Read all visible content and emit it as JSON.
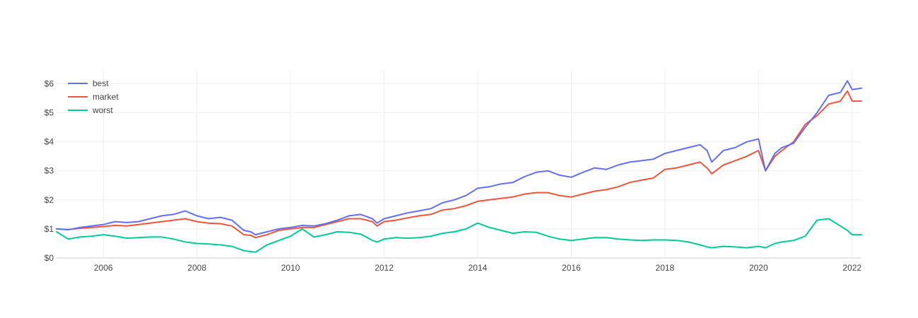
{
  "chart_data": {
    "type": "line",
    "title": "",
    "xlabel": "",
    "ylabel": "",
    "xlim": [
      2005.0,
      2022.2
    ],
    "ylim": [
      0,
      6.45
    ],
    "grid": true,
    "legend_position": "top-left",
    "x_ticks": [
      {
        "value": 2006,
        "label": "2006"
      },
      {
        "value": 2008,
        "label": "2008"
      },
      {
        "value": 2010,
        "label": "2010"
      },
      {
        "value": 2012,
        "label": "2012"
      },
      {
        "value": 2014,
        "label": "2014"
      },
      {
        "value": 2016,
        "label": "2016"
      },
      {
        "value": 2018,
        "label": "2018"
      },
      {
        "value": 2020,
        "label": "2020"
      },
      {
        "value": 2022,
        "label": "2022"
      }
    ],
    "y_ticks": [
      {
        "value": 0,
        "label": "$0"
      },
      {
        "value": 1,
        "label": "$1"
      },
      {
        "value": 2,
        "label": "$2"
      },
      {
        "value": 3,
        "label": "$3"
      },
      {
        "value": 4,
        "label": "$4"
      },
      {
        "value": 5,
        "label": "$5"
      },
      {
        "value": 6,
        "label": "$6"
      }
    ],
    "series": [
      {
        "name": "best",
        "color": "#636efa",
        "points": [
          [
            2005.0,
            1.0
          ],
          [
            2005.25,
            0.97
          ],
          [
            2005.5,
            1.05
          ],
          [
            2005.75,
            1.1
          ],
          [
            2006.0,
            1.15
          ],
          [
            2006.25,
            1.25
          ],
          [
            2006.5,
            1.22
          ],
          [
            2006.75,
            1.25
          ],
          [
            2007.0,
            1.35
          ],
          [
            2007.25,
            1.45
          ],
          [
            2007.5,
            1.5
          ],
          [
            2007.75,
            1.62
          ],
          [
            2008.0,
            1.45
          ],
          [
            2008.25,
            1.35
          ],
          [
            2008.5,
            1.4
          ],
          [
            2008.75,
            1.3
          ],
          [
            2009.0,
            0.95
          ],
          [
            2009.15,
            0.9
          ],
          [
            2009.25,
            0.8
          ],
          [
            2009.5,
            0.9
          ],
          [
            2009.75,
            1.0
          ],
          [
            2010.0,
            1.05
          ],
          [
            2010.25,
            1.12
          ],
          [
            2010.5,
            1.1
          ],
          [
            2010.75,
            1.18
          ],
          [
            2011.0,
            1.3
          ],
          [
            2011.25,
            1.45
          ],
          [
            2011.5,
            1.5
          ],
          [
            2011.75,
            1.35
          ],
          [
            2011.85,
            1.2
          ],
          [
            2012.0,
            1.35
          ],
          [
            2012.25,
            1.45
          ],
          [
            2012.5,
            1.55
          ],
          [
            2012.75,
            1.62
          ],
          [
            2013.0,
            1.7
          ],
          [
            2013.25,
            1.9
          ],
          [
            2013.5,
            2.0
          ],
          [
            2013.75,
            2.15
          ],
          [
            2014.0,
            2.4
          ],
          [
            2014.25,
            2.45
          ],
          [
            2014.5,
            2.55
          ],
          [
            2014.75,
            2.6
          ],
          [
            2015.0,
            2.8
          ],
          [
            2015.25,
            2.95
          ],
          [
            2015.5,
            3.0
          ],
          [
            2015.75,
            2.85
          ],
          [
            2016.0,
            2.78
          ],
          [
            2016.25,
            2.95
          ],
          [
            2016.5,
            3.1
          ],
          [
            2016.75,
            3.05
          ],
          [
            2017.0,
            3.2
          ],
          [
            2017.25,
            3.3
          ],
          [
            2017.5,
            3.35
          ],
          [
            2017.75,
            3.4
          ],
          [
            2018.0,
            3.6
          ],
          [
            2018.25,
            3.7
          ],
          [
            2018.5,
            3.8
          ],
          [
            2018.75,
            3.9
          ],
          [
            2018.9,
            3.7
          ],
          [
            2019.0,
            3.3
          ],
          [
            2019.25,
            3.7
          ],
          [
            2019.5,
            3.8
          ],
          [
            2019.75,
            4.0
          ],
          [
            2020.0,
            4.1
          ],
          [
            2020.15,
            3.0
          ],
          [
            2020.35,
            3.6
          ],
          [
            2020.5,
            3.8
          ],
          [
            2020.75,
            3.95
          ],
          [
            2021.0,
            4.5
          ],
          [
            2021.25,
            5.0
          ],
          [
            2021.5,
            5.6
          ],
          [
            2021.75,
            5.7
          ],
          [
            2021.9,
            6.1
          ],
          [
            2022.0,
            5.8
          ],
          [
            2022.2,
            5.85
          ]
        ]
      },
      {
        "name": "market",
        "color": "#ef553b",
        "points": [
          [
            2005.0,
            1.0
          ],
          [
            2005.25,
            0.98
          ],
          [
            2005.5,
            1.02
          ],
          [
            2005.75,
            1.05
          ],
          [
            2006.0,
            1.08
          ],
          [
            2006.25,
            1.12
          ],
          [
            2006.5,
            1.1
          ],
          [
            2006.75,
            1.15
          ],
          [
            2007.0,
            1.2
          ],
          [
            2007.25,
            1.25
          ],
          [
            2007.5,
            1.3
          ],
          [
            2007.75,
            1.35
          ],
          [
            2008.0,
            1.25
          ],
          [
            2008.25,
            1.2
          ],
          [
            2008.5,
            1.18
          ],
          [
            2008.75,
            1.1
          ],
          [
            2009.0,
            0.8
          ],
          [
            2009.15,
            0.78
          ],
          [
            2009.25,
            0.7
          ],
          [
            2009.5,
            0.8
          ],
          [
            2009.75,
            0.95
          ],
          [
            2010.0,
            1.0
          ],
          [
            2010.25,
            1.05
          ],
          [
            2010.5,
            1.05
          ],
          [
            2010.75,
            1.15
          ],
          [
            2011.0,
            1.25
          ],
          [
            2011.25,
            1.35
          ],
          [
            2011.5,
            1.35
          ],
          [
            2011.75,
            1.25
          ],
          [
            2011.85,
            1.1
          ],
          [
            2012.0,
            1.25
          ],
          [
            2012.25,
            1.3
          ],
          [
            2012.5,
            1.38
          ],
          [
            2012.75,
            1.45
          ],
          [
            2013.0,
            1.5
          ],
          [
            2013.25,
            1.65
          ],
          [
            2013.5,
            1.7
          ],
          [
            2013.75,
            1.8
          ],
          [
            2014.0,
            1.95
          ],
          [
            2014.25,
            2.0
          ],
          [
            2014.5,
            2.05
          ],
          [
            2014.75,
            2.1
          ],
          [
            2015.0,
            2.2
          ],
          [
            2015.25,
            2.25
          ],
          [
            2015.5,
            2.25
          ],
          [
            2015.75,
            2.15
          ],
          [
            2016.0,
            2.1
          ],
          [
            2016.25,
            2.2
          ],
          [
            2016.5,
            2.3
          ],
          [
            2016.75,
            2.35
          ],
          [
            2017.0,
            2.45
          ],
          [
            2017.25,
            2.6
          ],
          [
            2017.5,
            2.68
          ],
          [
            2017.75,
            2.75
          ],
          [
            2018.0,
            3.05
          ],
          [
            2018.25,
            3.1
          ],
          [
            2018.5,
            3.2
          ],
          [
            2018.75,
            3.3
          ],
          [
            2018.9,
            3.1
          ],
          [
            2019.0,
            2.9
          ],
          [
            2019.25,
            3.2
          ],
          [
            2019.5,
            3.35
          ],
          [
            2019.75,
            3.5
          ],
          [
            2020.0,
            3.7
          ],
          [
            2020.15,
            3.0
          ],
          [
            2020.35,
            3.5
          ],
          [
            2020.5,
            3.7
          ],
          [
            2020.75,
            4.0
          ],
          [
            2021.0,
            4.6
          ],
          [
            2021.25,
            4.9
          ],
          [
            2021.5,
            5.3
          ],
          [
            2021.75,
            5.4
          ],
          [
            2021.9,
            5.75
          ],
          [
            2022.0,
            5.4
          ],
          [
            2022.2,
            5.4
          ]
        ]
      },
      {
        "name": "worst",
        "color": "#00cc96",
        "points": [
          [
            2005.0,
            0.9
          ],
          [
            2005.25,
            0.65
          ],
          [
            2005.5,
            0.72
          ],
          [
            2005.75,
            0.75
          ],
          [
            2006.0,
            0.8
          ],
          [
            2006.25,
            0.75
          ],
          [
            2006.5,
            0.68
          ],
          [
            2006.75,
            0.7
          ],
          [
            2007.0,
            0.72
          ],
          [
            2007.25,
            0.72
          ],
          [
            2007.5,
            0.65
          ],
          [
            2007.75,
            0.55
          ],
          [
            2008.0,
            0.5
          ],
          [
            2008.25,
            0.48
          ],
          [
            2008.5,
            0.45
          ],
          [
            2008.75,
            0.4
          ],
          [
            2009.0,
            0.25
          ],
          [
            2009.15,
            0.22
          ],
          [
            2009.25,
            0.2
          ],
          [
            2009.5,
            0.45
          ],
          [
            2009.75,
            0.6
          ],
          [
            2010.0,
            0.75
          ],
          [
            2010.25,
            1.0
          ],
          [
            2010.5,
            0.72
          ],
          [
            2010.75,
            0.8
          ],
          [
            2011.0,
            0.9
          ],
          [
            2011.25,
            0.88
          ],
          [
            2011.5,
            0.82
          ],
          [
            2011.75,
            0.6
          ],
          [
            2011.85,
            0.55
          ],
          [
            2012.0,
            0.65
          ],
          [
            2012.25,
            0.7
          ],
          [
            2012.5,
            0.68
          ],
          [
            2012.75,
            0.7
          ],
          [
            2013.0,
            0.75
          ],
          [
            2013.25,
            0.85
          ],
          [
            2013.5,
            0.9
          ],
          [
            2013.75,
            1.0
          ],
          [
            2014.0,
            1.2
          ],
          [
            2014.25,
            1.05
          ],
          [
            2014.5,
            0.95
          ],
          [
            2014.75,
            0.85
          ],
          [
            2015.0,
            0.9
          ],
          [
            2015.25,
            0.88
          ],
          [
            2015.5,
            0.75
          ],
          [
            2015.75,
            0.65
          ],
          [
            2016.0,
            0.6
          ],
          [
            2016.25,
            0.65
          ],
          [
            2016.5,
            0.7
          ],
          [
            2016.75,
            0.7
          ],
          [
            2017.0,
            0.65
          ],
          [
            2017.25,
            0.62
          ],
          [
            2017.5,
            0.6
          ],
          [
            2017.75,
            0.62
          ],
          [
            2018.0,
            0.62
          ],
          [
            2018.25,
            0.6
          ],
          [
            2018.5,
            0.55
          ],
          [
            2018.75,
            0.45
          ],
          [
            2018.9,
            0.38
          ],
          [
            2019.0,
            0.35
          ],
          [
            2019.25,
            0.4
          ],
          [
            2019.5,
            0.38
          ],
          [
            2019.75,
            0.35
          ],
          [
            2020.0,
            0.4
          ],
          [
            2020.15,
            0.35
          ],
          [
            2020.35,
            0.5
          ],
          [
            2020.5,
            0.55
          ],
          [
            2020.75,
            0.6
          ],
          [
            2021.0,
            0.75
          ],
          [
            2021.25,
            1.3
          ],
          [
            2021.5,
            1.35
          ],
          [
            2021.75,
            1.1
          ],
          [
            2021.9,
            0.95
          ],
          [
            2022.0,
            0.8
          ],
          [
            2022.2,
            0.8
          ]
        ]
      }
    ]
  }
}
